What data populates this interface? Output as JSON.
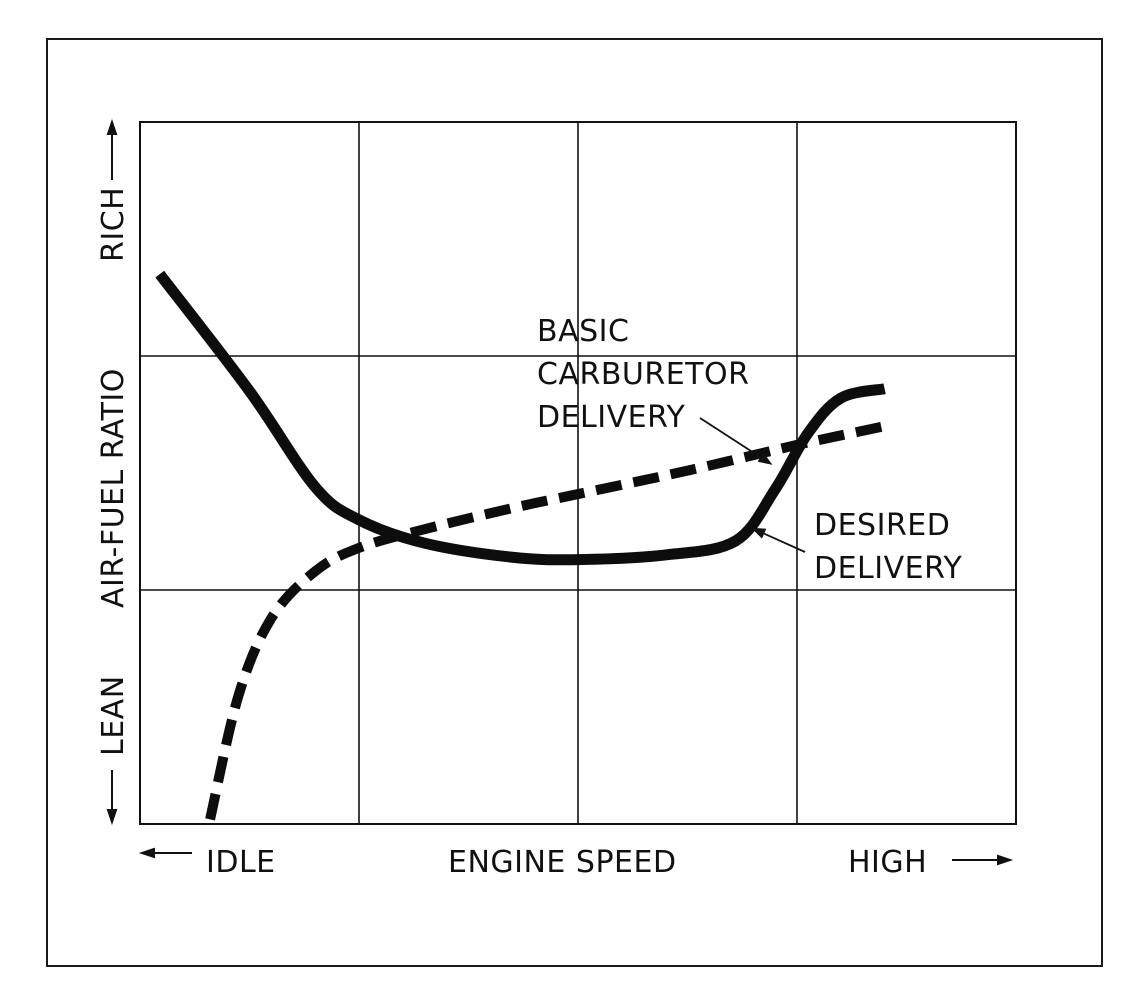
{
  "chart_data": {
    "type": "line",
    "title": "",
    "xlabel": "ENGINE SPEED",
    "ylabel": "AIR-FUEL RATIO",
    "x_axis": {
      "low_label": "IDLE",
      "high_label": "HIGH",
      "range": [
        0,
        4
      ]
    },
    "y_axis": {
      "low_label": "LEAN",
      "high_label": "RICH",
      "range": [
        0,
        3
      ]
    },
    "grid": {
      "on": true,
      "x_divisions": 4,
      "y_divisions": 3
    },
    "series": [
      {
        "name": "DESIRED DELIVERY",
        "style": "solid",
        "x": [
          0.09,
          0.5,
          0.8,
          1.0,
          1.3,
          1.7,
          2.0,
          2.4,
          2.72,
          2.9,
          3.05,
          3.2,
          3.4
        ],
        "y": [
          2.35,
          1.85,
          1.44,
          1.3,
          1.2,
          1.14,
          1.13,
          1.15,
          1.21,
          1.43,
          1.67,
          1.82,
          1.86
        ]
      },
      {
        "name": "BASIC CARBURETOR DELIVERY",
        "style": "dashed",
        "x": [
          0.32,
          0.45,
          0.6,
          0.8,
          1.0,
          1.3,
          1.7,
          2.0,
          2.5,
          3.0,
          3.4
        ],
        "y": [
          0.02,
          0.55,
          0.88,
          1.08,
          1.18,
          1.26,
          1.35,
          1.41,
          1.51,
          1.62,
          1.7
        ]
      }
    ],
    "annotations": [
      {
        "text": [
          "BASIC",
          "CARBURETOR",
          "DELIVERY"
        ],
        "points_to": "BASIC CARBURETOR DELIVERY",
        "at_x": 2.88
      },
      {
        "text": [
          "DESIRED",
          "DELIVERY"
        ],
        "points_to": "DESIRED DELIVERY",
        "at_x": 2.75
      }
    ]
  },
  "labels": {
    "y_rich": "RICH",
    "y_title": "AIR-FUEL RATIO",
    "y_lean": "LEAN",
    "x_idle": "IDLE",
    "x_title": "ENGINE SPEED",
    "x_high": "HIGH",
    "annot_basic_1": "BASIC",
    "annot_basic_2": "CARBURETOR",
    "annot_basic_3": "DELIVERY",
    "annot_desired_1": "DESIRED",
    "annot_desired_2": "DELIVERY"
  }
}
